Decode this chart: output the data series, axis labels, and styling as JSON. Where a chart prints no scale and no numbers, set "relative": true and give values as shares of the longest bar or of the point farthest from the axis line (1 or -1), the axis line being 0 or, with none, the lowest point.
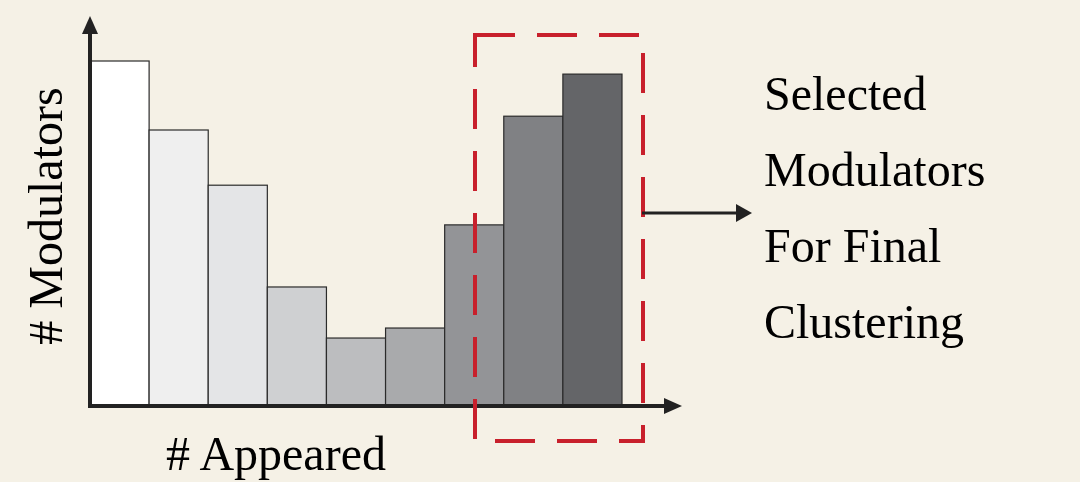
{
  "chart_data": {
    "type": "bar",
    "relative": true,
    "xlabel": "# Appeared",
    "ylabel": "# Modulators",
    "categories": [
      null,
      null,
      null,
      null,
      null,
      null,
      null,
      null,
      null
    ],
    "values": [
      1,
      0.8,
      0.64,
      0.345,
      0.197,
      0.226,
      0.525,
      0.84,
      0.962
    ],
    "colors": [
      "#ffffff",
      "#efefef",
      "#e4e5e7",
      "#cfd0d2",
      "#bcbdbf",
      "#a9aaac",
      "#939497",
      "#808184",
      "#646568"
    ],
    "annotations": [
      "Selected\nModulators\nFor Final\nClustering"
    ]
  }
}
